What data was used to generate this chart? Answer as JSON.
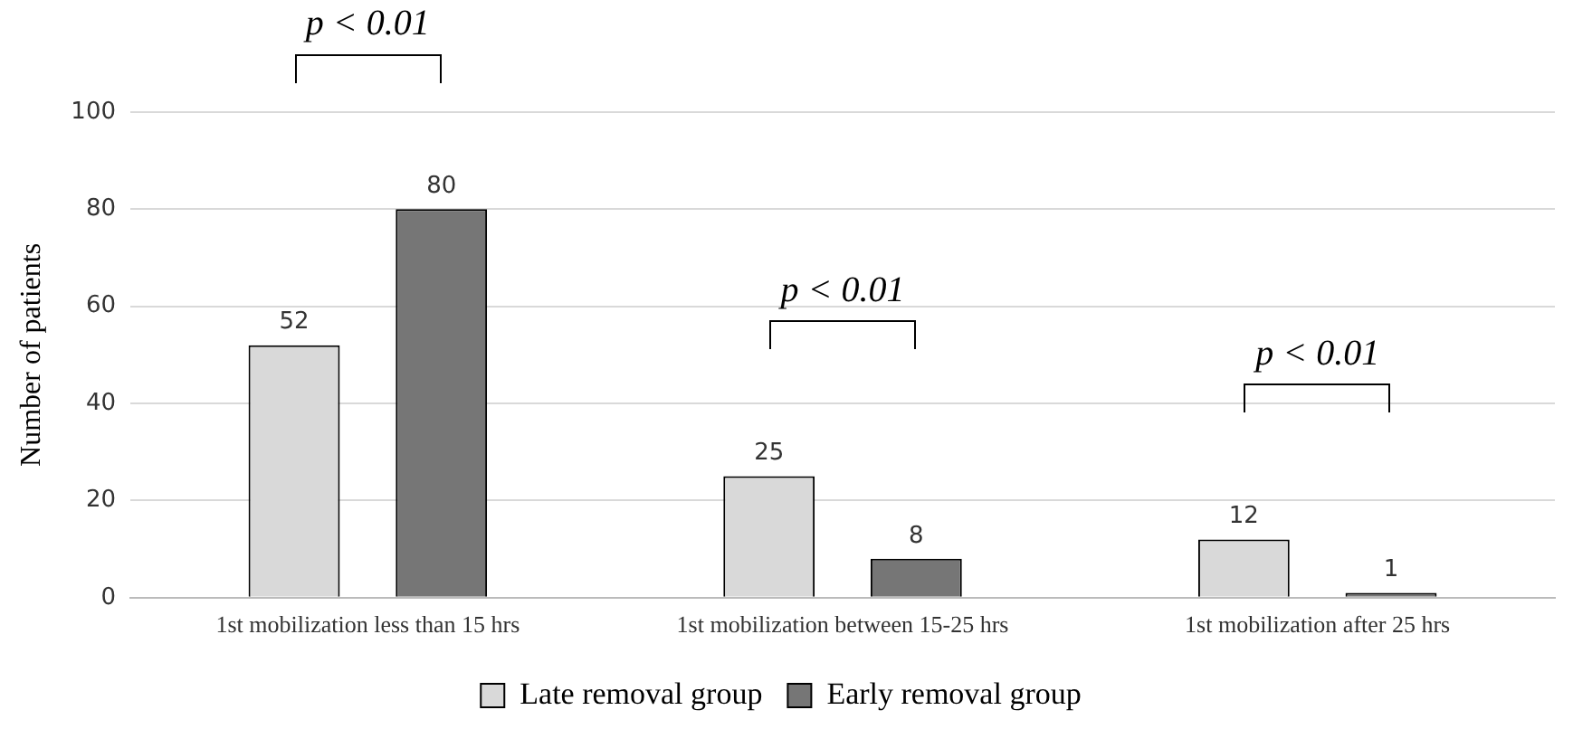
{
  "chart_data": {
    "type": "bar",
    "ylabel": "Number of patients",
    "categories": [
      "1st mobilization less than 15 hrs",
      "1st mobilization between 15-25 hrs",
      "1st mobilization after 25 hrs"
    ],
    "series": [
      {
        "name": "Late removal group",
        "color": "#d9d9d9",
        "values": [
          52,
          25,
          12
        ]
      },
      {
        "name": "Early removal group",
        "color": "#767676",
        "values": [
          80,
          8,
          1
        ]
      }
    ],
    "ylim": [
      0,
      100
    ],
    "yticks": [
      0,
      20,
      40,
      60,
      80,
      100
    ],
    "grid": "y",
    "legend": "bottom",
    "data_labels": true,
    "annotations": [
      "p < 0.01",
      "p < 0.01",
      "p < 0.01"
    ]
  }
}
